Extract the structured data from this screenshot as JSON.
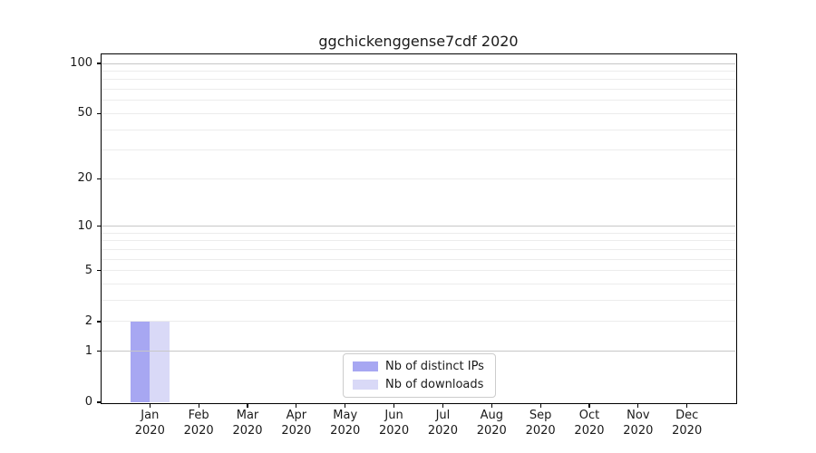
{
  "chart_data": {
    "type": "bar",
    "title": "ggchickenggense7cdf 2020",
    "categories": [
      "Jan",
      "Feb",
      "Mar",
      "Apr",
      "May",
      "Jun",
      "Jul",
      "Aug",
      "Sep",
      "Oct",
      "Nov",
      "Dec"
    ],
    "year": "2020",
    "series": [
      {
        "name": "Nb of distinct IPs",
        "color": "#a7a7f2",
        "values": [
          2,
          0,
          0,
          0,
          0,
          0,
          0,
          0,
          0,
          0,
          0,
          0
        ]
      },
      {
        "name": "Nb of downloads",
        "color": "#d9d9f7",
        "values": [
          2,
          0,
          0,
          0,
          0,
          0,
          0,
          0,
          0,
          0,
          0,
          0
        ]
      }
    ],
    "y_ticks": [
      0,
      1,
      2,
      5,
      10,
      20,
      50,
      100
    ],
    "y_scale": "log10(value+1)",
    "ylim": [
      0,
      114
    ],
    "xlabel": "",
    "ylabel": "",
    "grid": true,
    "major_gridlines": [
      1,
      10,
      100
    ],
    "minor_gridlines": [
      2,
      3,
      4,
      5,
      6,
      7,
      8,
      9,
      20,
      30,
      40,
      50,
      60,
      70,
      80,
      90
    ],
    "legend_position": "lower center"
  },
  "colors": {
    "background": "#ffffff",
    "axis": "#000000",
    "text": "#1a1a1a",
    "gridline_major": "#c7c7c7",
    "gridline_minor": "#ececec",
    "legend_border": "#cccccc"
  }
}
